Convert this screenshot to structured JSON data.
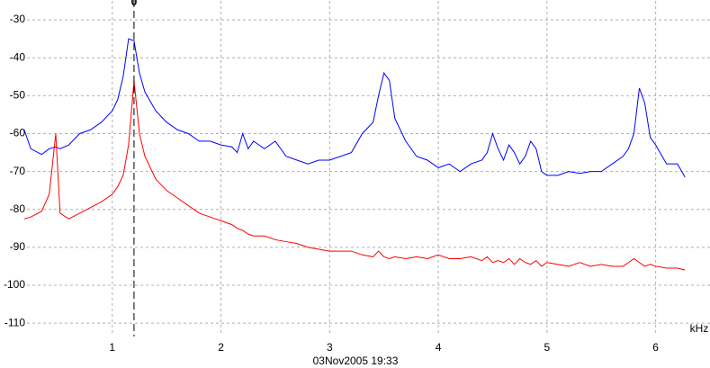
{
  "chart_data": {
    "type": "line",
    "x": [
      0.19,
      0.25,
      0.35,
      0.42,
      0.48,
      0.52,
      0.6,
      0.7,
      0.8,
      0.9,
      1.0,
      1.05,
      1.1,
      1.15,
      1.2,
      1.25,
      1.3,
      1.4,
      1.5,
      1.6,
      1.7,
      1.8,
      1.9,
      2.0,
      2.1,
      2.15,
      2.2,
      2.25,
      2.3,
      2.4,
      2.5,
      2.6,
      2.7,
      2.8,
      2.9,
      3.0,
      3.1,
      3.2,
      3.3,
      3.4,
      3.45,
      3.5,
      3.55,
      3.6,
      3.7,
      3.8,
      3.9,
      4.0,
      4.1,
      4.2,
      4.3,
      4.4,
      4.45,
      4.5,
      4.55,
      4.6,
      4.65,
      4.7,
      4.75,
      4.8,
      4.85,
      4.9,
      4.95,
      5.0,
      5.1,
      5.2,
      5.3,
      5.4,
      5.5,
      5.6,
      5.7,
      5.75,
      5.8,
      5.85,
      5.9,
      5.95,
      6.0,
      6.1,
      6.2,
      6.27
    ],
    "series": [
      {
        "color": "#0000ff",
        "values": [
          -59,
          -64,
          -65.5,
          -64,
          -63.5,
          -64,
          -63,
          -60,
          -59,
          -57,
          -54,
          -51,
          -45,
          -35,
          -35.5,
          -44,
          -49,
          -54,
          -57,
          -59,
          -60,
          -62,
          -62,
          -63,
          -63.5,
          -65,
          -60,
          -64,
          -62,
          -64,
          -62,
          -66,
          -67,
          -68,
          -67,
          -67,
          -66,
          -65,
          -60,
          -57,
          -50,
          -44,
          -46,
          -56,
          -62,
          -66,
          -67,
          -69,
          -68,
          -70,
          -68,
          -67,
          -65,
          -60,
          -64,
          -67,
          -63,
          -65,
          -68,
          -66,
          -62,
          -64,
          -70,
          -71,
          -71,
          -70,
          -70.5,
          -70,
          -70,
          -68,
          -66,
          -64,
          -60,
          -48,
          -52,
          -61,
          -63,
          -68,
          -68,
          -71.5
        ]
      },
      {
        "color": "#ff0000",
        "values": [
          -82.5,
          -82,
          -80.5,
          -76,
          -60,
          -81,
          -82.5,
          -81,
          -79.5,
          -78,
          -76,
          -74,
          -71,
          -63,
          -46,
          -60,
          -66,
          -72,
          -75,
          -77,
          -79,
          -81,
          -82,
          -83,
          -84,
          -85,
          -85.5,
          -86.5,
          -87,
          -87,
          -88,
          -88.5,
          -89,
          -90,
          -90.5,
          -91,
          -91,
          -91,
          -92,
          -92.5,
          -91,
          -92.5,
          -93,
          -92.5,
          -93,
          -92.5,
          -93,
          -92,
          -93,
          -93,
          -92.5,
          -93.5,
          -92.5,
          -94,
          -93.5,
          -94,
          -93,
          -94.5,
          -93,
          -94,
          -94.5,
          -93.5,
          -95,
          -94,
          -94.5,
          -95,
          -94,
          -95,
          -94.5,
          -95,
          -95,
          -94,
          -93,
          -94,
          -95,
          -94.5,
          -95,
          -95.5,
          -95.5,
          -96
        ]
      }
    ],
    "xlabel": "kHz",
    "xlim": [
      0,
      6.5
    ],
    "xticks": [
      1,
      2,
      3,
      4,
      5,
      6
    ],
    "ylim": [
      -114,
      -25
    ],
    "yticks": [
      -30,
      -40,
      -50,
      -60,
      -70,
      -80,
      -90,
      -100,
      -110
    ],
    "grid": true,
    "cursor": {
      "value": 1.2,
      "label": "0"
    },
    "footer": "03Nov2005 19:33"
  }
}
